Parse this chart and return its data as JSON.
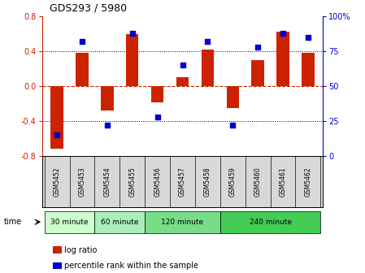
{
  "title": "GDS293 / 5980",
  "samples": [
    "GSM5452",
    "GSM5453",
    "GSM5454",
    "GSM5455",
    "GSM5456",
    "GSM5457",
    "GSM5458",
    "GSM5459",
    "GSM5460",
    "GSM5461",
    "GSM5462"
  ],
  "log_ratio": [
    -0.72,
    0.38,
    -0.28,
    0.6,
    -0.19,
    0.1,
    0.42,
    -0.25,
    0.3,
    0.62,
    0.38
  ],
  "percentile": [
    15,
    82,
    22,
    88,
    28,
    65,
    82,
    22,
    78,
    88,
    85
  ],
  "groups": [
    {
      "label": "30 minute",
      "start": 0,
      "end": 1,
      "color": "#ccffcc"
    },
    {
      "label": "60 minute",
      "start": 2,
      "end": 3,
      "color": "#aaeebb"
    },
    {
      "label": "120 minute",
      "start": 4,
      "end": 6,
      "color": "#77dd88"
    },
    {
      "label": "240 minute",
      "start": 7,
      "end": 10,
      "color": "#44cc55"
    }
  ],
  "group_colors": [
    "#ccffcc",
    "#aaeebb",
    "#77dd88",
    "#44cc55"
  ],
  "bar_color": "#cc2200",
  "dot_color": "#0000cc",
  "ylim_left": [
    -0.8,
    0.8
  ],
  "ylim_right": [
    0,
    100
  ],
  "yticks_left": [
    -0.8,
    -0.4,
    0.0,
    0.4,
    0.8
  ],
  "yticks_right": [
    0,
    25,
    50,
    75,
    100
  ],
  "bar_width": 0.5,
  "dot_size": 22,
  "background_color": "#ffffff",
  "tick_color_left": "#cc2200",
  "tick_color_right": "#0000cc",
  "legend_label_bar": "log ratio",
  "legend_label_dot": "percentile rank within the sample",
  "time_label": "time"
}
